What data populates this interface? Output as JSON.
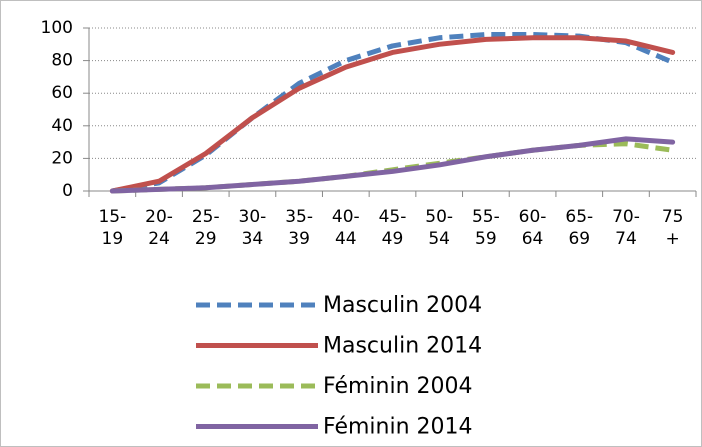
{
  "chart_data": {
    "type": "line",
    "categories": [
      "15-19",
      "20-24",
      "25-29",
      "30-34",
      "35-39",
      "40-44",
      "45-49",
      "50-54",
      "55-59",
      "60-64",
      "65-69",
      "70-74",
      "75 +"
    ],
    "series": [
      {
        "name": "Masculin 2004",
        "color": "#4f81bd",
        "dashed": true,
        "values": [
          0,
          5,
          22,
          45,
          66,
          80,
          89,
          94,
          96,
          96,
          95,
          91,
          79
        ]
      },
      {
        "name": "Masculin 2014",
        "color": "#c0504d",
        "dashed": false,
        "values": [
          0,
          6,
          23,
          45,
          63,
          76,
          85,
          90,
          93,
          94,
          94,
          92,
          85
        ]
      },
      {
        "name": "Féminin 2004",
        "color": "#9bbb59",
        "dashed": true,
        "values": [
          0,
          1,
          2,
          4,
          6,
          9,
          13,
          17,
          21,
          25,
          28,
          29,
          25
        ]
      },
      {
        "name": "Féminin 2014",
        "color": "#8064a2",
        "dashed": false,
        "values": [
          0,
          1,
          2,
          4,
          6,
          9,
          12,
          16,
          21,
          25,
          28,
          32,
          30
        ]
      }
    ],
    "ylim": [
      0,
      100
    ],
    "yticks": [
      0,
      20,
      40,
      60,
      80,
      100
    ],
    "grid": true,
    "legend": "bottom"
  }
}
